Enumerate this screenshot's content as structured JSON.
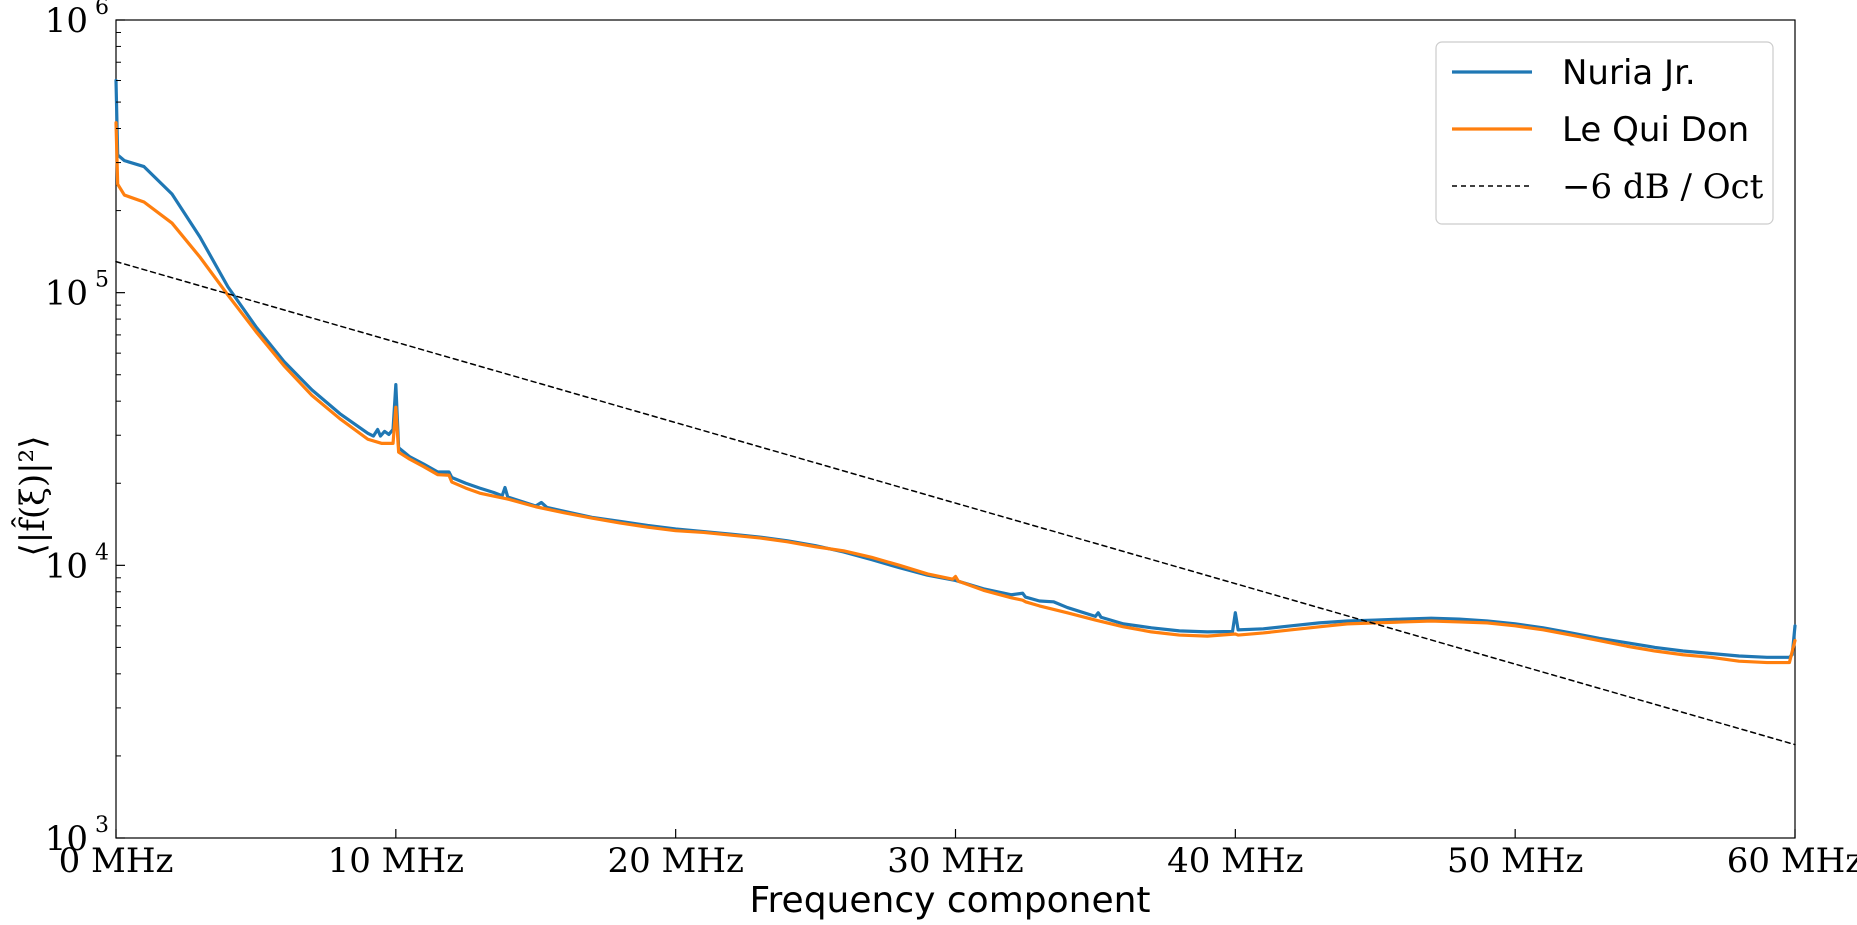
{
  "chart_data": {
    "type": "line",
    "title": "",
    "xlabel": "Frequency component",
    "ylabel": "⟨|f̂(ξ)|²⟩",
    "xlim": [
      0,
      60
    ],
    "x_tick_values": [
      0,
      10,
      20,
      30,
      40,
      50,
      60
    ],
    "x_tick_labels": [
      "0 MHz",
      "10 MHz",
      "20 MHz",
      "30 MHz",
      "40 MHz",
      "50 MHz",
      "60 MHz"
    ],
    "yscale": "log",
    "ylim": [
      1000,
      1000000
    ],
    "y_ticks": [
      {
        "value": 1000,
        "base": "10",
        "exp": "3"
      },
      {
        "value": 10000,
        "base": "10",
        "exp": "4"
      },
      {
        "value": 100000,
        "base": "10",
        "exp": "5"
      },
      {
        "value": 1000000,
        "base": "10",
        "exp": "6"
      }
    ],
    "grid": false,
    "legend_position": "top-right",
    "series": [
      {
        "name": "Nuria Jr.",
        "color": "#1f77b4",
        "style": "solid",
        "points": [
          [
            0,
            600000
          ],
          [
            0.06,
            320000
          ],
          [
            0.3,
            305000
          ],
          [
            1,
            290000
          ],
          [
            2,
            230000
          ],
          [
            3,
            160000
          ],
          [
            4,
            105000
          ],
          [
            5,
            75000
          ],
          [
            6,
            56000
          ],
          [
            7,
            44000
          ],
          [
            8,
            36000
          ],
          [
            9,
            30500
          ],
          [
            9.2,
            29800
          ],
          [
            9.35,
            31500
          ],
          [
            9.45,
            29800
          ],
          [
            9.6,
            31000
          ],
          [
            9.75,
            30200
          ],
          [
            9.9,
            31500
          ],
          [
            10,
            46000
          ],
          [
            10.1,
            27000
          ],
          [
            10.5,
            25000
          ],
          [
            11,
            23500
          ],
          [
            11.5,
            22000
          ],
          [
            11.9,
            22000
          ],
          [
            12,
            21000
          ],
          [
            12.5,
            20000
          ],
          [
            13,
            19200
          ],
          [
            13.5,
            18500
          ],
          [
            13.8,
            18000
          ],
          [
            13.9,
            19300
          ],
          [
            14,
            17800
          ],
          [
            15,
            16500
          ],
          [
            15.2,
            17000
          ],
          [
            15.4,
            16300
          ],
          [
            16,
            15800
          ],
          [
            17,
            15000
          ],
          [
            18,
            14500
          ],
          [
            19,
            14000
          ],
          [
            20,
            13600
          ],
          [
            21,
            13300
          ],
          [
            22,
            13000
          ],
          [
            23,
            12700
          ],
          [
            24,
            12300
          ],
          [
            25,
            11800
          ],
          [
            26,
            11200
          ],
          [
            27,
            10500
          ],
          [
            28,
            9800
          ],
          [
            29,
            9200
          ],
          [
            30,
            8800
          ],
          [
            31,
            8200
          ],
          [
            32,
            7800
          ],
          [
            32.4,
            7900
          ],
          [
            32.5,
            7650
          ],
          [
            33,
            7400
          ],
          [
            33.5,
            7350
          ],
          [
            34,
            7000
          ],
          [
            35,
            6500
          ],
          [
            35.1,
            6700
          ],
          [
            35.2,
            6450
          ],
          [
            36,
            6100
          ],
          [
            37,
            5900
          ],
          [
            38,
            5750
          ],
          [
            39,
            5700
          ],
          [
            39.9,
            5720
          ],
          [
            40,
            6700
          ],
          [
            40.1,
            5800
          ],
          [
            41,
            5850
          ],
          [
            42,
            6000
          ],
          [
            43,
            6150
          ],
          [
            44,
            6250
          ],
          [
            45,
            6300
          ],
          [
            46,
            6350
          ],
          [
            47,
            6400
          ],
          [
            48,
            6350
          ],
          [
            49,
            6250
          ],
          [
            50,
            6100
          ],
          [
            51,
            5900
          ],
          [
            52,
            5650
          ],
          [
            53,
            5400
          ],
          [
            54,
            5200
          ],
          [
            55,
            5000
          ],
          [
            56,
            4850
          ],
          [
            57,
            4750
          ],
          [
            58,
            4650
          ],
          [
            59,
            4600
          ],
          [
            59.8,
            4600
          ],
          [
            59.9,
            4700
          ],
          [
            60,
            6000
          ]
        ]
      },
      {
        "name": "Le Qui Don",
        "color": "#ff7f0e",
        "style": "solid",
        "points": [
          [
            0,
            420000
          ],
          [
            0.06,
            250000
          ],
          [
            0.3,
            228000
          ],
          [
            1,
            215000
          ],
          [
            2,
            180000
          ],
          [
            3,
            135000
          ],
          [
            4,
            98000
          ],
          [
            5,
            72000
          ],
          [
            6,
            54000
          ],
          [
            7,
            42000
          ],
          [
            8,
            34500
          ],
          [
            9,
            29000
          ],
          [
            9.5,
            28000
          ],
          [
            9.9,
            28000
          ],
          [
            10,
            38000
          ],
          [
            10.1,
            26000
          ],
          [
            10.5,
            24500
          ],
          [
            11,
            23000
          ],
          [
            11.5,
            21500
          ],
          [
            11.9,
            21400
          ],
          [
            12,
            20200
          ],
          [
            12.5,
            19200
          ],
          [
            13,
            18400
          ],
          [
            14,
            17500
          ],
          [
            15,
            16400
          ],
          [
            16,
            15600
          ],
          [
            17,
            14900
          ],
          [
            18,
            14300
          ],
          [
            19,
            13800
          ],
          [
            20,
            13400
          ],
          [
            21,
            13200
          ],
          [
            22,
            12900
          ],
          [
            23,
            12600
          ],
          [
            24,
            12200
          ],
          [
            25,
            11700
          ],
          [
            26,
            11300
          ],
          [
            27,
            10700
          ],
          [
            28,
            10000
          ],
          [
            29,
            9300
          ],
          [
            29.9,
            8900
          ],
          [
            30,
            9100
          ],
          [
            30.1,
            8750
          ],
          [
            31,
            8100
          ],
          [
            32,
            7600
          ],
          [
            32.4,
            7450
          ],
          [
            32.5,
            7350
          ],
          [
            33,
            7100
          ],
          [
            34,
            6700
          ],
          [
            35,
            6300
          ],
          [
            36,
            5950
          ],
          [
            37,
            5700
          ],
          [
            38,
            5550
          ],
          [
            39,
            5500
          ],
          [
            40,
            5600
          ],
          [
            40.1,
            5550
          ],
          [
            41,
            5650
          ],
          [
            42,
            5800
          ],
          [
            43,
            5950
          ],
          [
            44,
            6100
          ],
          [
            45,
            6150
          ],
          [
            46,
            6200
          ],
          [
            47,
            6250
          ],
          [
            48,
            6200
          ],
          [
            49,
            6150
          ],
          [
            50,
            6000
          ],
          [
            51,
            5800
          ],
          [
            52,
            5550
          ],
          [
            53,
            5300
          ],
          [
            54,
            5050
          ],
          [
            55,
            4850
          ],
          [
            56,
            4700
          ],
          [
            57,
            4600
          ],
          [
            58,
            4450
          ],
          [
            59,
            4400
          ],
          [
            59.8,
            4400
          ],
          [
            60,
            5300
          ]
        ]
      },
      {
        "name": "−6 dB / Oct",
        "color": "#000000",
        "style": "dashed",
        "points": [
          [
            0,
            130000
          ],
          [
            60,
            2200
          ]
        ]
      }
    ]
  }
}
